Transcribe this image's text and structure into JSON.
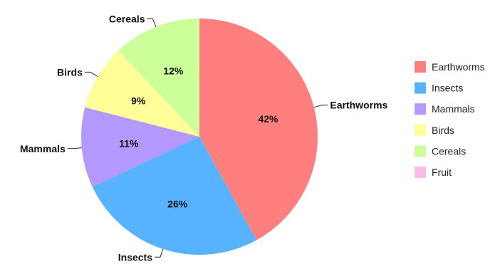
{
  "chart_data": {
    "type": "pie",
    "slices": [
      {
        "name": "Earthworms",
        "value": 42,
        "label": "42%",
        "color": "#ff7f7f"
      },
      {
        "name": "Insects",
        "value": 26,
        "label": "26%",
        "color": "#57b2ff"
      },
      {
        "name": "Mammals",
        "value": 11,
        "label": "11%",
        "color": "#b399ff"
      },
      {
        "name": "Birds",
        "value": 9,
        "label": "9%",
        "color": "#ffff99"
      },
      {
        "name": "Cereals",
        "value": 12,
        "label": "12%",
        "color": "#ccff99"
      },
      {
        "name": "Fruit",
        "value": 0,
        "label": "",
        "color": "#ffbbee"
      }
    ],
    "legend": {
      "position": "right",
      "items": [
        "Earthworms",
        "Insects",
        "Mammals",
        "Birds",
        "Cereals",
        "Fruit"
      ]
    },
    "start": "12 o'clock",
    "direction": "clockwise"
  }
}
